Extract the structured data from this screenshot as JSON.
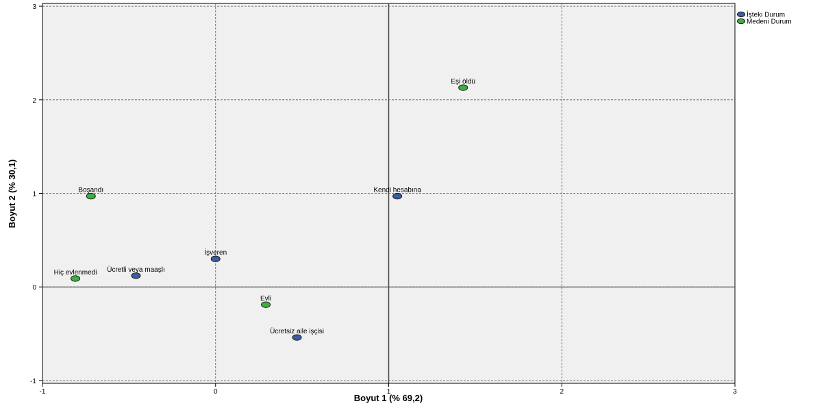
{
  "chart_data": {
    "type": "scatter",
    "xlabel": "Boyut 1 (% 69,2)",
    "ylabel": "Boyut 2 (% 30,1)",
    "xlim": [
      -1,
      3
    ],
    "ylim": [
      -1.03,
      3.03
    ],
    "x_ticks": [
      -1,
      0,
      1,
      2,
      3
    ],
    "y_ticks": [
      -1,
      0,
      1,
      2,
      3
    ],
    "grid": true,
    "legend_position": "top-right",
    "background_color": "#f0f0f0",
    "series": [
      {
        "name": "İşteki Durum",
        "color": "#3b5e9e",
        "points": [
          {
            "label": "Kendi hesabına",
            "x": 1.05,
            "y": 0.97
          },
          {
            "label": "İşveren",
            "x": 0.0,
            "y": 0.3
          },
          {
            "label": "Ücretli veya maaşlı",
            "x": -0.46,
            "y": 0.12
          },
          {
            "label": "Ücretsiz aile işçisi",
            "x": 0.47,
            "y": -0.54
          }
        ]
      },
      {
        "name": "Medeni Durum",
        "color": "#3cb043",
        "points": [
          {
            "label": "Eşi öldü",
            "x": 1.43,
            "y": 2.13
          },
          {
            "label": "Boşandı",
            "x": -0.72,
            "y": 0.97
          },
          {
            "label": "Hiç evlenmedi",
            "x": -0.81,
            "y": 0.09
          },
          {
            "label": "Evli",
            "x": 0.29,
            "y": -0.19
          }
        ]
      }
    ]
  }
}
